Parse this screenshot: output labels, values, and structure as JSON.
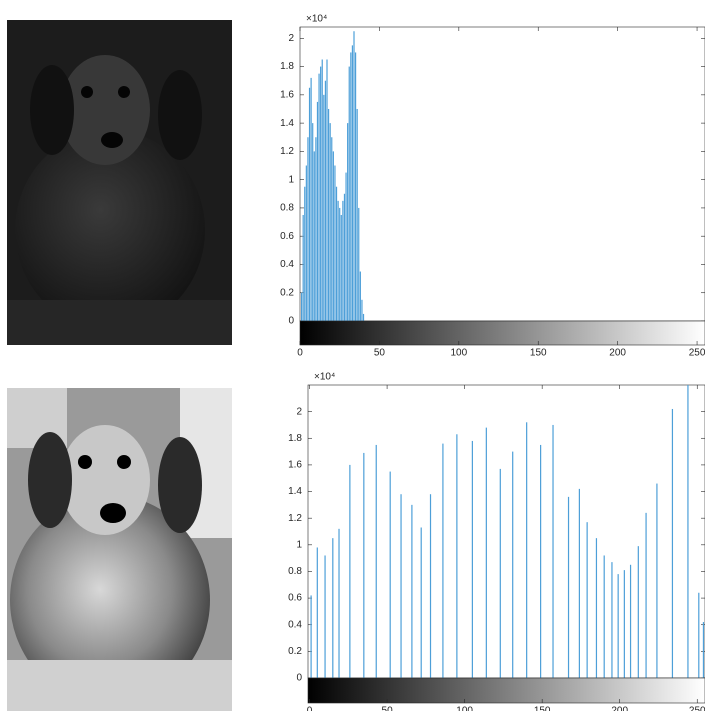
{
  "chart_data": [
    {
      "type": "bar",
      "y_multiplier_label": "×10⁴",
      "color": "#4d9fd8",
      "x": [
        0,
        1,
        2,
        3,
        4,
        5,
        6,
        7,
        8,
        9,
        10,
        11,
        12,
        13,
        14,
        15,
        16,
        17,
        18,
        19,
        20,
        21,
        22,
        23,
        24,
        25,
        26,
        27,
        28,
        29,
        30,
        31,
        32,
        33,
        34,
        35,
        36,
        37,
        38,
        39,
        40,
        41
      ],
      "values": [
        0,
        2000,
        7500,
        9500,
        11000,
        13000,
        16500,
        17200,
        14000,
        12000,
        13000,
        15500,
        17500,
        18000,
        18500,
        16000,
        17000,
        18500,
        15000,
        14000,
        13000,
        12000,
        11000,
        9500,
        8500,
        8000,
        7500,
        8500,
        9000,
        10500,
        14000,
        18000,
        19000,
        19500,
        20500,
        19000,
        15000,
        8000,
        3500,
        1500,
        500,
        0
      ],
      "xlim": [
        0,
        255
      ],
      "xticks": [
        0,
        50,
        100,
        150,
        200,
        250
      ],
      "ylim": [
        0,
        20800
      ],
      "yticks": [
        0,
        {
          "value": 2000,
          "label": "0.2"
        },
        {
          "value": 4000,
          "label": "0.4"
        },
        {
          "value": 6000,
          "label": "0.6"
        },
        {
          "value": 8000,
          "label": "0.8"
        },
        {
          "value": 10000,
          "label": "1"
        },
        {
          "value": 12000,
          "label": "1.2"
        },
        {
          "value": 14000,
          "label": "1.4"
        },
        {
          "value": 16000,
          "label": "1.6"
        },
        {
          "value": 18000,
          "label": "1.8"
        },
        {
          "value": 20000,
          "label": "2"
        }
      ]
    },
    {
      "type": "bar",
      "y_multiplier_label": "×10⁴",
      "color": "#4d9fd8",
      "x": [
        1,
        5,
        10,
        15,
        19,
        26,
        35,
        43,
        52,
        59,
        66,
        72,
        78,
        86,
        95,
        105,
        114,
        123,
        131,
        140,
        149,
        157,
        167,
        174,
        179,
        185,
        190,
        195,
        199,
        203,
        207,
        212,
        217,
        224,
        234,
        244,
        251,
        254
      ],
      "values": [
        6200,
        9800,
        9200,
        10500,
        11200,
        16000,
        16900,
        17500,
        15500,
        13800,
        13000,
        11300,
        13800,
        17600,
        18300,
        17800,
        18800,
        15700,
        17000,
        19200,
        17500,
        19000,
        13600,
        14200,
        11700,
        10500,
        9200,
        8700,
        7800,
        8100,
        8500,
        9900,
        12400,
        14600,
        20200,
        22000,
        6400,
        4200
      ],
      "xlim": [
        -1,
        255
      ],
      "xticks": [
        0,
        50,
        100,
        150,
        200,
        250
      ],
      "ylim": [
        0,
        22000
      ],
      "yticks": [
        0,
        {
          "value": 2000,
          "label": "0.2"
        },
        {
          "value": 4000,
          "label": "0.4"
        },
        {
          "value": 6000,
          "label": "0.6"
        },
        {
          "value": 8000,
          "label": "0.8"
        },
        {
          "value": 10000,
          "label": "1"
        },
        {
          "value": 12000,
          "label": "1.2"
        },
        {
          "value": 14000,
          "label": "1.4"
        },
        {
          "value": 16000,
          "label": "1.6"
        },
        {
          "value": 18000,
          "label": "1.8"
        },
        {
          "value": 20000,
          "label": "2"
        }
      ]
    }
  ]
}
